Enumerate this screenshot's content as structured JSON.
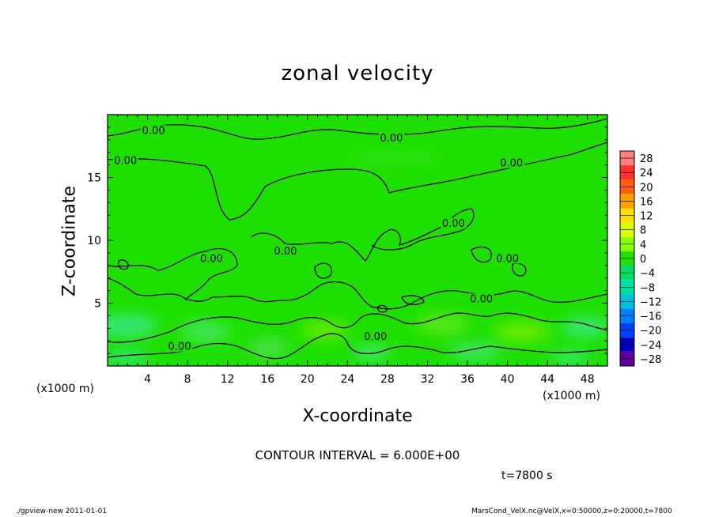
{
  "chart_data": {
    "type": "heatmap",
    "title": "zonal velocity",
    "xlabel": "X-coordinate",
    "ylabel": "Z-coordinate",
    "x_unit": "(×1000 m)",
    "y_unit": "(×1000 m)",
    "xlim": [
      0,
      50
    ],
    "ylim": [
      0,
      20
    ],
    "x_ticks": [
      4,
      8,
      12,
      16,
      20,
      24,
      28,
      32,
      36,
      40,
      44,
      48
    ],
    "y_ticks": [
      5,
      10,
      15
    ],
    "colorbar": {
      "levels": [
        28,
        24,
        20,
        16,
        12,
        8,
        4,
        0,
        -4,
        -8,
        -12,
        -16,
        -20,
        -24,
        -28
      ],
      "labels": [
        "28",
        "24",
        "20",
        "16",
        "12",
        "8",
        "4",
        "0",
        "−4",
        "−8",
        "−12",
        "−16",
        "−20",
        "−24",
        "−28"
      ],
      "colors": [
        "#ff8080",
        "#ff3030",
        "#ff6000",
        "#ffa000",
        "#ffe000",
        "#d8ff00",
        "#88ff00",
        "#20e000",
        "#00e060",
        "#00e0a0",
        "#00c0e0",
        "#0080ff",
        "#0040ff",
        "#0000c0",
        "#6000a0"
      ]
    },
    "contour_labels": [
      {
        "text": "0.00",
        "x": 4.6,
        "y": 18.6
      },
      {
        "text": "0.00",
        "x": 1.8,
        "y": 16.2
      },
      {
        "text": "0.00",
        "x": 28.4,
        "y": 18.0
      },
      {
        "text": "0.00",
        "x": 40.4,
        "y": 16.0
      },
      {
        "text": "0.00",
        "x": 34.6,
        "y": 11.2
      },
      {
        "text": "0.00",
        "x": 10.4,
        "y": 8.4
      },
      {
        "text": "0.00",
        "x": 17.8,
        "y": 9.0
      },
      {
        "text": "0.00",
        "x": 40.0,
        "y": 8.4
      },
      {
        "text": "0.00",
        "x": 37.4,
        "y": 5.2
      },
      {
        "text": "0.00",
        "x": 26.8,
        "y": 2.2
      },
      {
        "text": "0.00",
        "x": 7.2,
        "y": 1.4
      }
    ],
    "contour_interval": "6.000E+00"
  },
  "page": {
    "contour_interval_text": "CONTOUR INTERVAL = 6.000E+00",
    "time_text": "t=7800 s",
    "footer_left": "./gpview-new  2011-01-01",
    "footer_right": "MarsCond_VelX.nc@VelX,x=0:50000,z=0:20000,t=7800",
    "x_unit_left": "(x1000 m)",
    "x_unit_right": "(x1000 m)"
  }
}
